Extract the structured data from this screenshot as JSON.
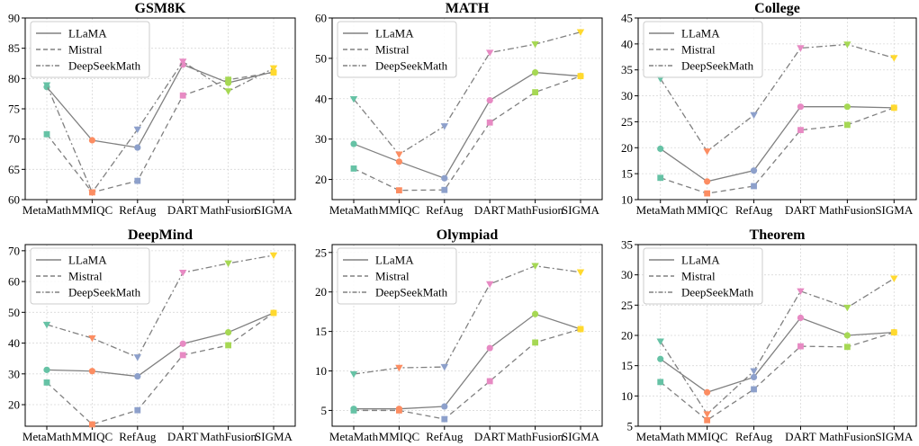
{
  "figure": {
    "methods": [
      "MetaMath",
      "MMIQC",
      "RefAug",
      "DART",
      "MathFusion",
      "SIGMA"
    ],
    "method_colors": [
      "#66c2a5",
      "#fc8d62",
      "#8da0cb",
      "#e78ac3",
      "#a6d854",
      "#ffd92f"
    ],
    "series_style": {
      "LLaMA": {
        "line_color": "#808080",
        "dash": "none",
        "marker": "circle"
      },
      "Mistral": {
        "line_color": "#808080",
        "dash": "dashed",
        "marker": "square"
      },
      "DeepSeekMath": {
        "line_color": "#808080",
        "dash": "dash-dot",
        "marker": "triangle-down"
      }
    }
  },
  "chart_data": [
    {
      "type": "line",
      "title": "GSM8K",
      "categories": [
        "MetaMath",
        "MMIQC",
        "RefAug",
        "DART",
        "MathFusion",
        "SIGMA"
      ],
      "ylim": [
        60,
        90
      ],
      "yticks": [
        60,
        65,
        70,
        75,
        80,
        85,
        90
      ],
      "legend": "top-left",
      "grid": true,
      "series": [
        {
          "name": "LLaMA",
          "values": [
            78.6,
            69.8,
            68.6,
            82.3,
            79.3,
            81.1
          ]
        },
        {
          "name": "Mistral",
          "values": [
            70.8,
            61.2,
            63.1,
            77.2,
            79.8,
            81.0
          ]
        },
        {
          "name": "DeepSeekMath",
          "values": [
            78.9,
            61.2,
            71.6,
            82.8,
            77.9,
            81.7
          ]
        }
      ]
    },
    {
      "type": "line",
      "title": "MATH",
      "categories": [
        "MetaMath",
        "MMIQC",
        "RefAug",
        "DART",
        "MathFusion",
        "SIGMA"
      ],
      "ylim": [
        15,
        60
      ],
      "yticks": [
        20,
        30,
        40,
        50,
        60
      ],
      "legend": "top-left",
      "grid": true,
      "series": [
        {
          "name": "LLaMA",
          "values": [
            28.8,
            24.4,
            20.3,
            39.6,
            46.5,
            45.6
          ]
        },
        {
          "name": "Mistral",
          "values": [
            22.7,
            17.3,
            17.4,
            34.1,
            41.6,
            45.6
          ]
        },
        {
          "name": "DeepSeekMath",
          "values": [
            39.9,
            26.2,
            33.2,
            51.4,
            53.5,
            56.5
          ]
        }
      ]
    },
    {
      "type": "line",
      "title": "College",
      "categories": [
        "MetaMath",
        "MMIQC",
        "RefAug",
        "DART",
        "MathFusion",
        "SIGMA"
      ],
      "ylim": [
        10,
        45
      ],
      "yticks": [
        10,
        15,
        20,
        25,
        30,
        35,
        40,
        45
      ],
      "legend": "top-left",
      "grid": true,
      "series": [
        {
          "name": "LLaMA",
          "values": [
            19.8,
            13.5,
            15.6,
            27.9,
            27.9,
            27.7
          ]
        },
        {
          "name": "Mistral",
          "values": [
            14.2,
            11.2,
            12.6,
            23.4,
            24.4,
            27.7
          ]
        },
        {
          "name": "DeepSeekMath",
          "values": [
            33.3,
            19.3,
            26.3,
            39.2,
            39.9,
            37.3
          ]
        }
      ]
    },
    {
      "type": "line",
      "title": "DeepMind",
      "categories": [
        "MetaMath",
        "MMIQC",
        "RefAug",
        "DART",
        "MathFusion",
        "SIGMA"
      ],
      "ylim": [
        13,
        72
      ],
      "yticks": [
        20,
        30,
        40,
        50,
        60,
        70
      ],
      "legend": "top-left",
      "grid": true,
      "series": [
        {
          "name": "LLaMA",
          "values": [
            31.3,
            30.9,
            29.2,
            39.8,
            43.5,
            49.8
          ]
        },
        {
          "name": "Mistral",
          "values": [
            27.2,
            13.6,
            18.2,
            36.1,
            39.3,
            49.8
          ]
        },
        {
          "name": "DeepSeekMath",
          "values": [
            46.0,
            41.6,
            35.4,
            62.9,
            65.9,
            68.5
          ]
        }
      ]
    },
    {
      "type": "line",
      "title": "Olympiad",
      "categories": [
        "MetaMath",
        "MMIQC",
        "RefAug",
        "DART",
        "MathFusion",
        "SIGMA"
      ],
      "ylim": [
        3,
        26
      ],
      "yticks": [
        5,
        10,
        15,
        20,
        25
      ],
      "legend": "top-left",
      "grid": true,
      "series": [
        {
          "name": "LLaMA",
          "values": [
            5.2,
            5.2,
            5.5,
            12.9,
            17.2,
            15.3
          ]
        },
        {
          "name": "Mistral",
          "values": [
            5.0,
            5.0,
            3.9,
            8.7,
            13.6,
            15.3
          ]
        },
        {
          "name": "DeepSeekMath",
          "values": [
            9.6,
            10.4,
            10.5,
            21.0,
            23.3,
            22.5
          ]
        }
      ]
    },
    {
      "type": "line",
      "title": "Theorem",
      "categories": [
        "MetaMath",
        "MMIQC",
        "RefAug",
        "DART",
        "MathFusion",
        "SIGMA"
      ],
      "ylim": [
        5,
        35
      ],
      "yticks": [
        5,
        10,
        15,
        20,
        25,
        30,
        35
      ],
      "legend": "top-left",
      "grid": true,
      "series": [
        {
          "name": "LLaMA",
          "values": [
            16.1,
            10.6,
            13.1,
            22.9,
            20.0,
            20.5
          ]
        },
        {
          "name": "Mistral",
          "values": [
            12.3,
            6.0,
            11.1,
            18.2,
            18.1,
            20.5
          ]
        },
        {
          "name": "DeepSeekMath",
          "values": [
            19.0,
            7.0,
            14.1,
            27.3,
            24.6,
            29.4
          ]
        }
      ]
    }
  ]
}
